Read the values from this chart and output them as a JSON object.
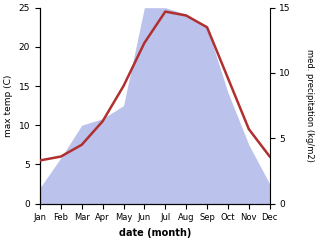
{
  "months": [
    "Jan",
    "Feb",
    "Mar",
    "Apr",
    "May",
    "Jun",
    "Jul",
    "Aug",
    "Sep",
    "Oct",
    "Nov",
    "Dec"
  ],
  "temp": [
    5.5,
    6.0,
    7.5,
    10.5,
    15.0,
    20.5,
    24.5,
    24.0,
    22.5,
    16.0,
    9.5,
    6.0
  ],
  "precip": [
    1.2,
    3.5,
    6.0,
    6.5,
    7.5,
    15.0,
    15.0,
    14.5,
    13.5,
    8.5,
    4.5,
    1.5
  ],
  "temp_color": "#b03030",
  "precip_color": "#b0b8e8",
  "temp_ylim": [
    0,
    25
  ],
  "precip_ylim": [
    0,
    15
  ],
  "temp_yticks": [
    0,
    5,
    10,
    15,
    20,
    25
  ],
  "precip_yticks": [
    0,
    5,
    10,
    15
  ],
  "ylabel_left": "max temp (C)",
  "ylabel_right": "med. precipitation (kg/m2)",
  "xlabel": "date (month)",
  "bg_color": "#ffffff",
  "line_width": 1.8
}
